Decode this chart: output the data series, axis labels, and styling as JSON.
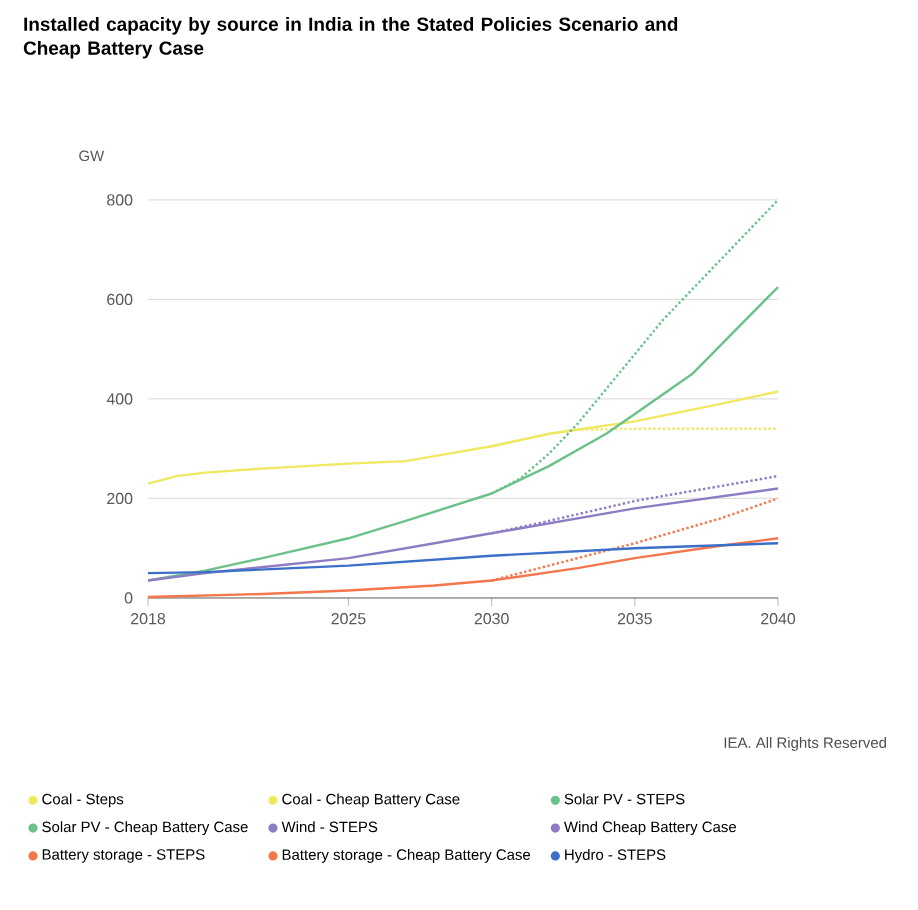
{
  "chart_data": {
    "type": "line",
    "title": "Installed capacity by source in India in the Stated Policies Scenario and Cheap Battery Case",
    "ylabel": "GW",
    "xlim": [
      2018,
      2040
    ],
    "xticks": [
      2018,
      2025,
      2030,
      2035,
      2040
    ],
    "ylim": [
      0,
      800
    ],
    "yticks": [
      0,
      200,
      400,
      600,
      800
    ],
    "grid": "y",
    "legend": "bottom",
    "annotations": [
      "IEA. All Rights Reserved"
    ],
    "series": [
      {
        "name": "Coal - Steps",
        "color": "#f0e860",
        "line_style": "solid",
        "x": [
          2018,
          2019,
          2020,
          2022,
          2025,
          2027,
          2028,
          2030,
          2032,
          2035,
          2038,
          2040
        ],
        "values": [
          230,
          245,
          252,
          260,
          270,
          275,
          285,
          305,
          330,
          355,
          390,
          415
        ]
      },
      {
        "name": "Coal - Cheap Battery Case",
        "color": "#f0e860",
        "line_style": "dotted",
        "x": [
          2030,
          2032,
          2033,
          2035,
          2040
        ],
        "values": [
          305,
          330,
          338,
          340,
          340
        ]
      },
      {
        "name": "Solar PV - STEPS",
        "color": "#6cc18a",
        "line_style": "solid",
        "x": [
          2018,
          2020,
          2022,
          2025,
          2027,
          2030,
          2032,
          2034,
          2035,
          2037,
          2040
        ],
        "values": [
          35,
          55,
          80,
          120,
          155,
          210,
          265,
          330,
          370,
          450,
          625
        ]
      },
      {
        "name": "Solar PV - Cheap Battery Case",
        "color": "#6cc18a",
        "line_style": "dotted",
        "x": [
          2030,
          2031,
          2032,
          2033,
          2034,
          2035,
          2036,
          2038,
          2040
        ],
        "values": [
          210,
          240,
          290,
          350,
          420,
          490,
          560,
          680,
          800
        ]
      },
      {
        "name": "Wind - STEPS",
        "color": "#8e7cc3",
        "line_style": "solid",
        "x": [
          2018,
          2020,
          2025,
          2028,
          2030,
          2035,
          2040
        ],
        "values": [
          35,
          50,
          80,
          110,
          130,
          180,
          220
        ]
      },
      {
        "name": "Wind Cheap Battery Case",
        "color": "#8e7cc3",
        "line_style": "dotted",
        "x": [
          2030,
          2032,
          2035,
          2040
        ],
        "values": [
          130,
          155,
          195,
          245
        ]
      },
      {
        "name": "Battery storage - STEPS",
        "color": "#f4764d",
        "line_style": "solid",
        "x": [
          2018,
          2022,
          2025,
          2028,
          2030,
          2033,
          2035,
          2038,
          2040
        ],
        "values": [
          2,
          8,
          15,
          25,
          35,
          60,
          80,
          105,
          120
        ]
      },
      {
        "name": "Battery storage - Cheap Battery Case",
        "color": "#f4764d",
        "line_style": "dotted",
        "x": [
          2030,
          2032,
          2035,
          2038,
          2040
        ],
        "values": [
          35,
          65,
          110,
          160,
          200
        ]
      },
      {
        "name": "Hydro - STEPS",
        "color": "#3c6fc7",
        "line_style": "solid",
        "x": [
          2018,
          2020,
          2025,
          2030,
          2035,
          2040
        ],
        "values": [
          50,
          52,
          65,
          85,
          100,
          110
        ]
      }
    ]
  }
}
